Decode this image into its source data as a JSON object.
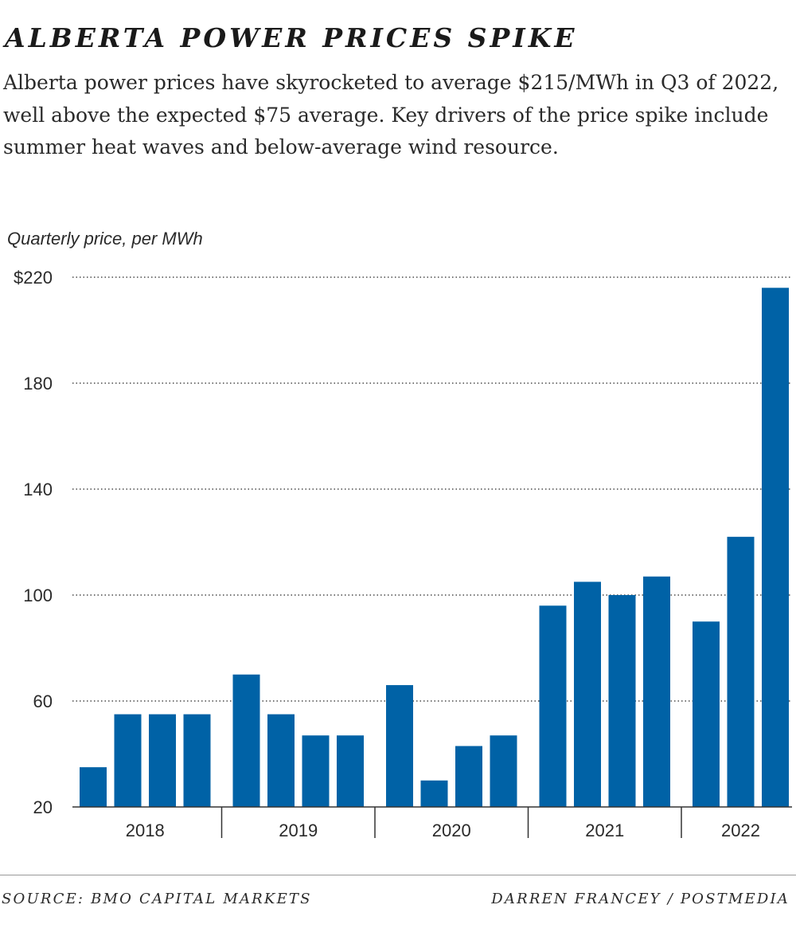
{
  "header": {
    "title": "ALBERTA POWER PRICES SPIKE",
    "subtitle": "Alberta power prices have skyrocketed to average $215/MWh in Q3 of 2022, well above the expected $75 average. Key drivers of the price spike include summer heat waves and below-average wind resource."
  },
  "footer": {
    "source": "SOURCE: BMO CAPITAL MARKETS",
    "credit": "DARREN FRANCEY / POSTMEDIA"
  },
  "colors": {
    "bar": "#0062a6",
    "grid": "#4a4a4a",
    "text": "#2a2a2a"
  },
  "chart_data": {
    "type": "bar",
    "ylabel": "Quarterly price, per MWh",
    "ylim": [
      20,
      220
    ],
    "yticks": [
      20,
      60,
      100,
      140,
      180,
      220
    ],
    "ytick_labels": [
      "20",
      "60",
      "100",
      "140",
      "180",
      "$220"
    ],
    "grid": true,
    "groups": [
      {
        "label": "2018",
        "values": [
          35,
          55,
          55,
          55
        ]
      },
      {
        "label": "2019",
        "values": [
          70,
          55,
          47,
          47
        ]
      },
      {
        "label": "2020",
        "values": [
          66,
          30,
          43,
          47
        ]
      },
      {
        "label": "2021",
        "values": [
          96,
          105,
          100,
          107
        ]
      },
      {
        "label": "2022",
        "values": [
          90,
          122,
          216
        ]
      }
    ]
  }
}
